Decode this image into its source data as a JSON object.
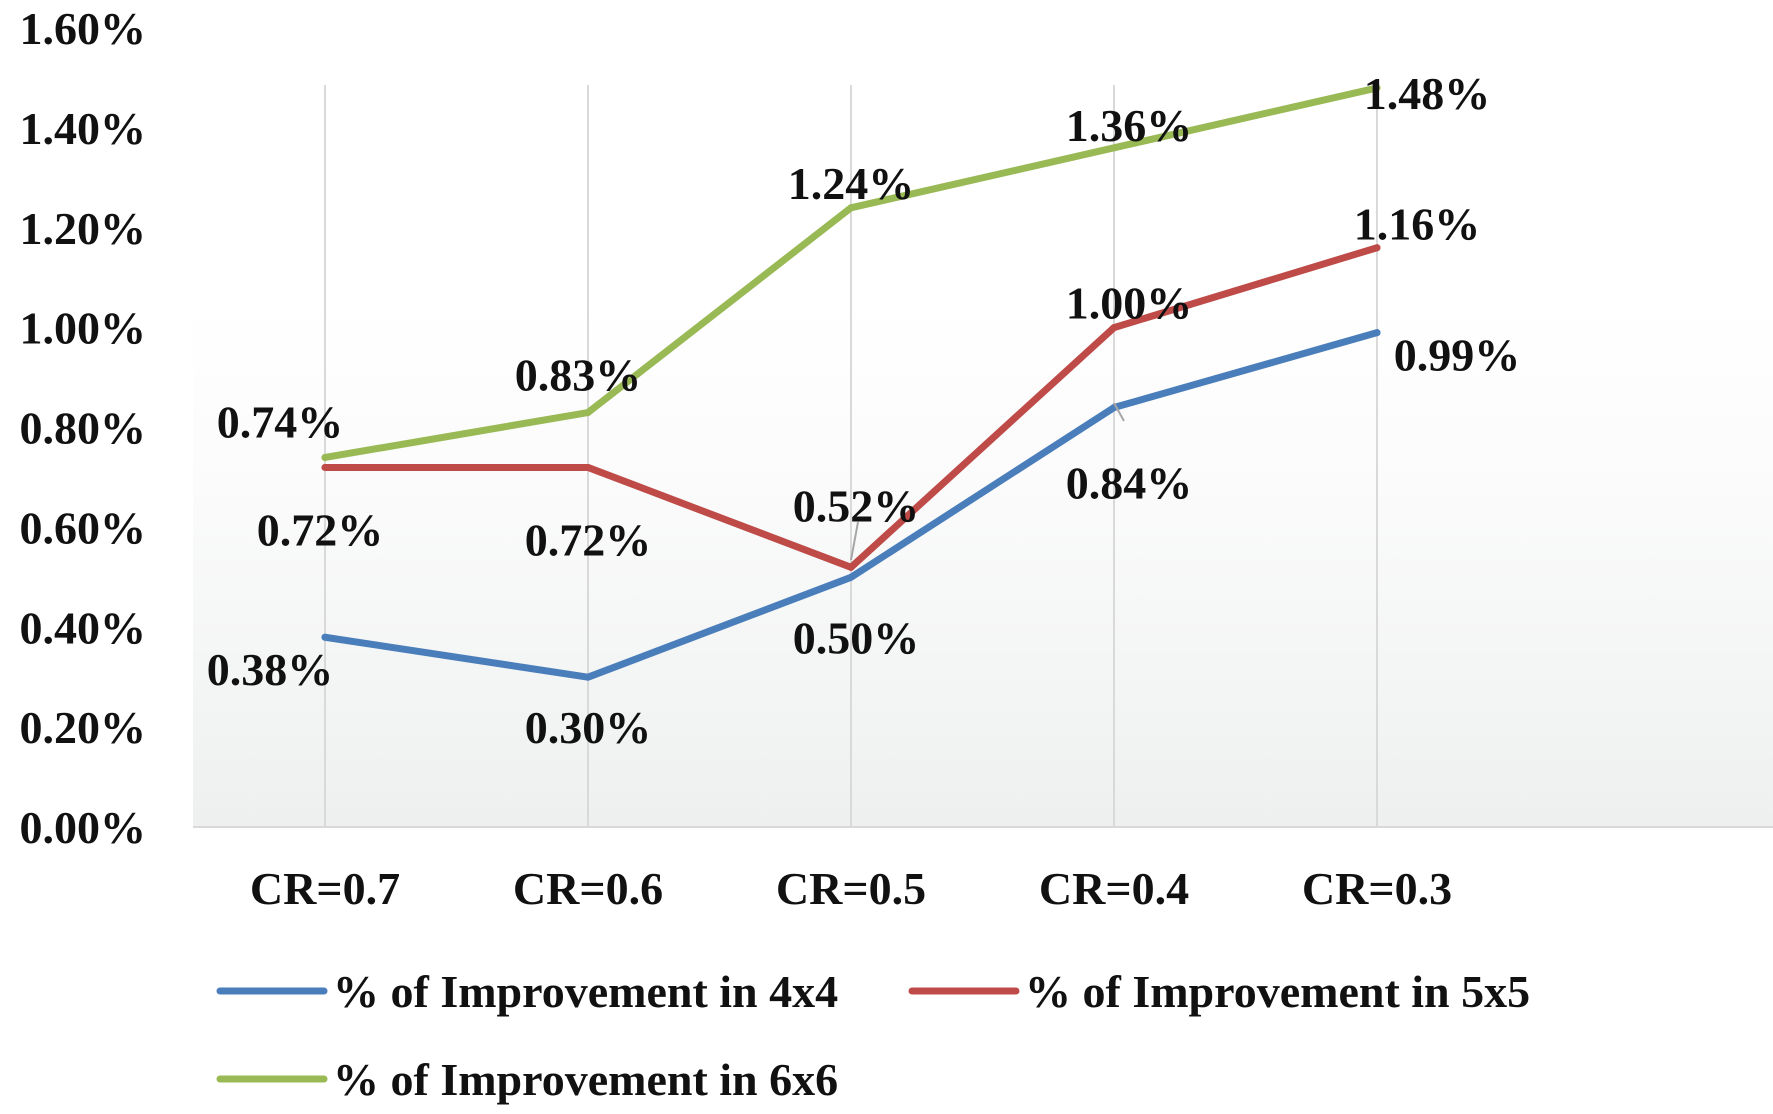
{
  "chart_data": {
    "type": "line",
    "title": "",
    "xlabel": "",
    "ylabel": "",
    "categories": [
      "CR=0.7",
      "CR=0.6",
      "CR=0.5",
      "CR=0.4",
      "CR=0.3"
    ],
    "ylim": [
      0,
      1.6
    ],
    "yticks": [
      0,
      0.2,
      0.4,
      0.6,
      0.8,
      1.0,
      1.2,
      1.4,
      1.6
    ],
    "ytick_labels": [
      "0.00%",
      "0.20%",
      "0.40%",
      "0.60%",
      "0.80%",
      "1.00%",
      "1.20%",
      "1.40%",
      "1.60%"
    ],
    "grid": "vertical",
    "legend_position": "bottom",
    "series": [
      {
        "name": "% of Improvement in 4x4",
        "color": "#4a7ebb",
        "values": [
          0.38,
          0.3,
          0.5,
          0.84,
          0.99
        ],
        "labels": [
          "0.38%",
          "0.30%",
          "0.50%",
          "0.84%",
          "0.99%"
        ]
      },
      {
        "name": "% of Improvement in 5x5",
        "color": "#be4b48",
        "values": [
          0.72,
          0.72,
          0.52,
          1.0,
          1.16
        ],
        "labels": [
          "0.72%",
          "0.72%",
          "0.52%",
          "1.00%",
          "1.16%"
        ]
      },
      {
        "name": "% of Improvement in 6x6",
        "color": "#98b954",
        "values": [
          0.74,
          0.83,
          1.24,
          1.36,
          1.48
        ],
        "labels": [
          "0.74%",
          "0.83%",
          "1.24%",
          "1.36%",
          "1.48%"
        ]
      }
    ]
  }
}
